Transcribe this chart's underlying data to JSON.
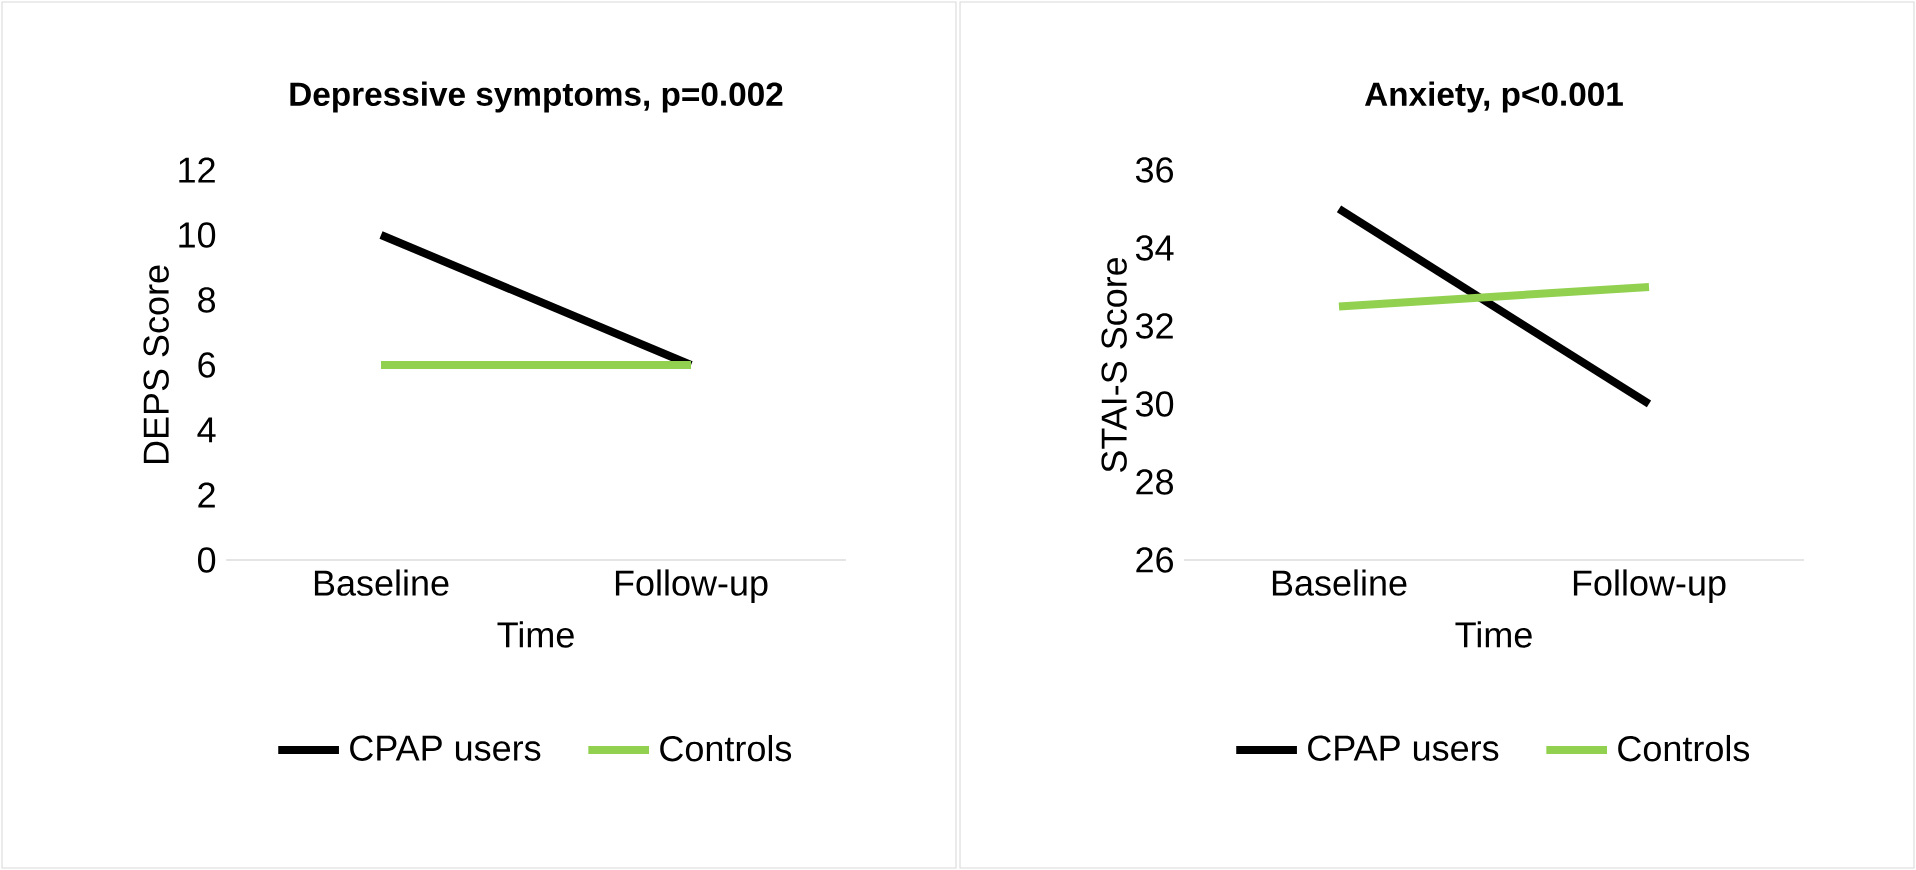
{
  "chart_data": [
    {
      "type": "line",
      "title": "Depressive symptoms, p=0.002",
      "xlabel": "Time",
      "ylabel": "DEPS Score",
      "categories": [
        "Baseline",
        "Follow-up"
      ],
      "series": [
        {
          "name": "CPAP users",
          "color": "#000000",
          "values": [
            10,
            6
          ]
        },
        {
          "name": "Controls",
          "color": "#92d050",
          "values": [
            6,
            6
          ]
        }
      ],
      "ylim": [
        0,
        12
      ],
      "yticks": [
        0,
        2,
        4,
        6,
        8,
        10,
        12
      ],
      "legend": "bottom",
      "grid": false
    },
    {
      "type": "line",
      "title": "Anxiety, p<0.001",
      "xlabel": "Time",
      "ylabel": "STAI-S Score",
      "categories": [
        "Baseline",
        "Follow-up"
      ],
      "series": [
        {
          "name": "CPAP users",
          "color": "#000000",
          "values": [
            35,
            30
          ]
        },
        {
          "name": "Controls",
          "color": "#92d050",
          "values": [
            32.5,
            33
          ]
        }
      ],
      "ylim": [
        26,
        36
      ],
      "yticks": [
        26,
        28,
        30,
        32,
        34,
        36
      ],
      "legend": "bottom",
      "grid": false
    }
  ]
}
